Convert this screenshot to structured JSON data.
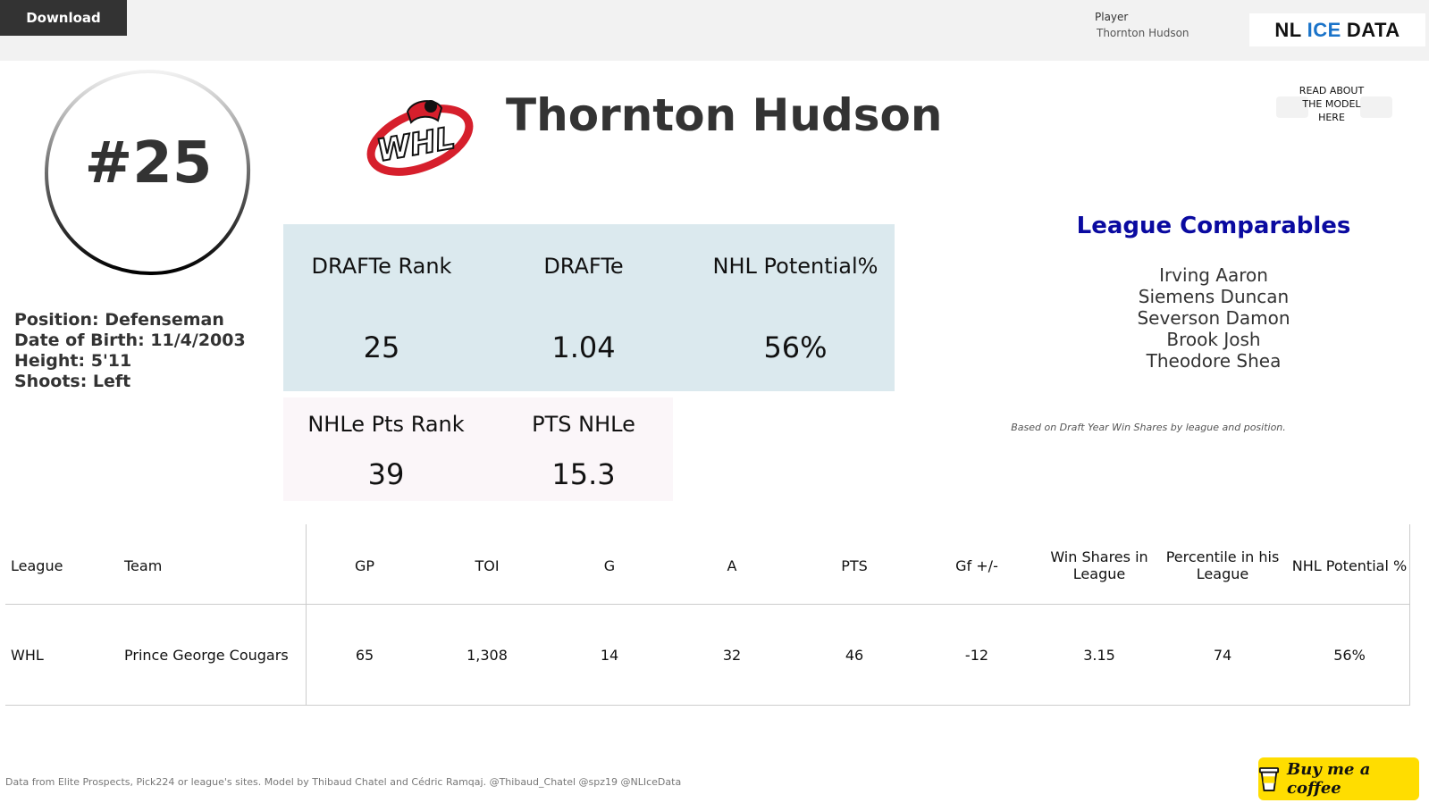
{
  "topbar": {
    "download_label": "Download",
    "player_filter_label": "Player",
    "player_filter_value": "Thornton Hudson",
    "logo": {
      "word1": "NL",
      "word2": "ICE",
      "word3": "DATA"
    }
  },
  "player": {
    "jersey_number": "#25",
    "name": "Thornton Hudson",
    "league_logo_text": "WHL",
    "bio": {
      "position": "Position: Defenseman",
      "dob": "Date of Birth: 11/4/2003",
      "height": "Height: 5'11",
      "shoots": "Shoots: Left"
    }
  },
  "model_link": {
    "label_line1": "READ ABOUT",
    "label_line2": "THE MODEL",
    "label_line3": "HERE"
  },
  "stats": {
    "drafte_rank_label": "DRAFTe Rank",
    "drafte_rank_value": "25",
    "drafte_label": "DRAFTe",
    "drafte_value": "1.04",
    "nhl_potential_label": "NHL Potential%",
    "nhl_potential_value": "56%",
    "nhle_pts_rank_label": "NHLe Pts Rank",
    "nhle_pts_rank_value": "39",
    "pts_nhle_label": "PTS NHLe",
    "pts_nhle_value": "15.3"
  },
  "comparables": {
    "title": "League Comparables",
    "names": [
      "Irving Aaron",
      "Siemens Duncan",
      "Severson Damon",
      "Brook Josh",
      "Theodore Shea"
    ],
    "note": "Based on Draft Year Win Shares by league and position."
  },
  "table": {
    "headers": {
      "league": "League",
      "team": "Team",
      "gp": "GP",
      "toi": "TOI",
      "g": "G",
      "a": "A",
      "pts": "PTS",
      "gf": "Gf +/-",
      "ws_line1": "Win Shares in",
      "ws_line2": "League",
      "pct_line1": "Percentile in his",
      "pct_line2": "League",
      "nhlp": "NHL Potential %"
    },
    "row": {
      "league": "WHL",
      "team": "Prince George Cougars",
      "gp": "65",
      "toi": "1,308",
      "g": "14",
      "a": "32",
      "pts": "46",
      "gf": "-12",
      "ws": "3.15",
      "pct": "74",
      "nhlp": "56%"
    }
  },
  "footer": {
    "credits": "Data from Elite Prospects, Pick224 or league's sites. Model by Thibaud Chatel and Cédric Ramqaj. @Thibaud_Chatel @spz19 @NLIceData",
    "coffee_label": "Buy me a coffee"
  },
  "colors": {
    "blue_panel": "#dbe9ee",
    "pink_panel": "#fbf6f9",
    "comparables_title": "#0a0aa0",
    "logo_accent": "#1a73c9",
    "coffee_bg": "#ffdd00",
    "whl_red": "#d61f2c"
  }
}
